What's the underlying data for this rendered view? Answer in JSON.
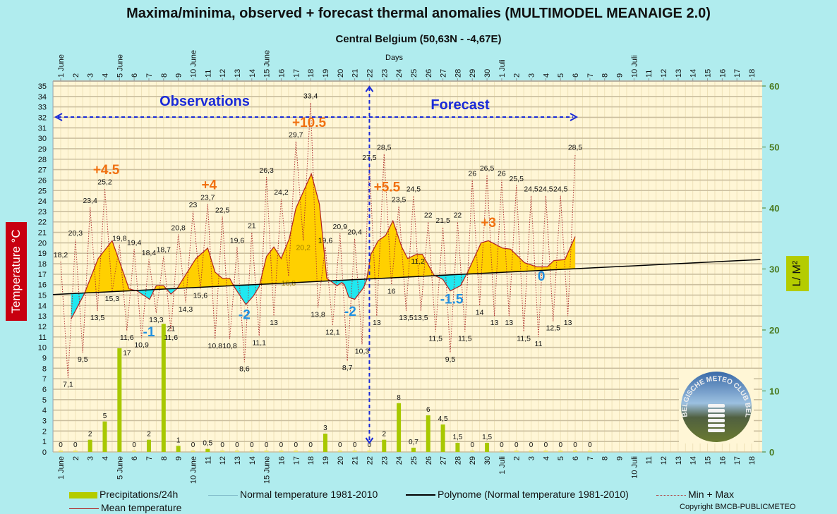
{
  "title": "Maxima/minima, observed + forecast thermal anomalies (MULTIMODEL MEANAIGE 2.0)",
  "subtitle": "Central Belgium (50,63N - -4,67E)",
  "chart_data": {
    "type": "combo",
    "xlabel": "Days",
    "ylabel_left": "Temperature °C",
    "ylabel_right": "L/ M²",
    "ylim_left": [
      0,
      35
    ],
    "ylim_right": [
      0,
      60
    ],
    "grid": true,
    "day_labels": [
      "1 June",
      "2",
      "3",
      "4",
      "5 June",
      "6",
      "7",
      "8",
      "9",
      "10 June",
      "11",
      "12",
      "13",
      "14",
      "15 June",
      "16",
      "17",
      "18",
      "19",
      "20",
      "21",
      "22",
      "23",
      "24",
      "25",
      "26",
      "27",
      "28",
      "29",
      "30",
      "1 Juli",
      "2",
      "3",
      "4",
      "5",
      "6",
      "7",
      "8",
      "9",
      "10 Juli",
      "11",
      "12",
      "13",
      "14",
      "15",
      "16",
      "17",
      "18"
    ],
    "regions": {
      "observations_label": "Observations",
      "forecast_label": "Forecast",
      "forecast_start_day": 22
    },
    "series": [
      {
        "name": "Precipitations/24h",
        "type": "bar",
        "axis": "right",
        "color": "#a8c800",
        "values": [
          0,
          0,
          2,
          5,
          17,
          0,
          2,
          21,
          1,
          0,
          0.5,
          0,
          0,
          0,
          0,
          0,
          0,
          0,
          3,
          0,
          0,
          0,
          2,
          8,
          0.7,
          6,
          4.5,
          1.5,
          0,
          1.5,
          0,
          0,
          0,
          0,
          0,
          0,
          0
        ]
      },
      {
        "name": "Normal temperature 1981-2010",
        "type": "line",
        "color": "#7fb8c8"
      },
      {
        "name": "Polynome (Normal temperature 1981-2010)",
        "type": "line",
        "color": "#000000",
        "points": [
          [
            0.47,
            15.05
          ],
          [
            48.6,
            18.4
          ]
        ]
      },
      {
        "name": "Min + Max",
        "type": "line",
        "style": "dotted",
        "color": "#b03030",
        "step_days": 0.5,
        "values": [
          18.2,
          7.1,
          20.3,
          9.5,
          23.4,
          13.5,
          25.2,
          15.3,
          19.8,
          11.6,
          19.4,
          10.9,
          18.4,
          13.3,
          18.7,
          11.6,
          20.8,
          14.3,
          23,
          15.6,
          23.7,
          10.8,
          22.5,
          10.8,
          19.6,
          8.6,
          21,
          11.1,
          26.3,
          13,
          24.2,
          16.8,
          29.7,
          20.2,
          33.4,
          13.8,
          19.6,
          12.1,
          20.9,
          8.7,
          20.4,
          10.3,
          27.5,
          13,
          28.5,
          16,
          23.5,
          13.5,
          24.5,
          13.5,
          22,
          11.5,
          21.5,
          9.5,
          22,
          11.5,
          26,
          14,
          26.5,
          13,
          26,
          13,
          25.5,
          11.5,
          24.5,
          11,
          24.5,
          12.5,
          24.5,
          13,
          28.5
        ]
      },
      {
        "name": "Mean temperature",
        "type": "line",
        "color": "#b02020",
        "points": [
          [
            1.7,
            12.7
          ],
          [
            2.6,
            15.1
          ],
          [
            3.55,
            18.5
          ],
          [
            4.5,
            20.2
          ],
          [
            5.65,
            15.6
          ],
          [
            6.2,
            15.4
          ],
          [
            7.05,
            14.6
          ],
          [
            7.5,
            15.9
          ],
          [
            8,
            15.9
          ],
          [
            8.5,
            15.1
          ],
          [
            8.9,
            15.6
          ],
          [
            10.2,
            18.5
          ],
          [
            11,
            19.5
          ],
          [
            11.5,
            17.2
          ],
          [
            12,
            16.6
          ],
          [
            12.5,
            16.6
          ],
          [
            12.8,
            15.8
          ],
          [
            13.6,
            14.1
          ],
          [
            14.1,
            14.9
          ],
          [
            14.5,
            15.8
          ],
          [
            15,
            18.7
          ],
          [
            15.5,
            19.6
          ],
          [
            16,
            18.5
          ],
          [
            16.55,
            20.4
          ],
          [
            17,
            23.3
          ],
          [
            18.05,
            26.6
          ],
          [
            18.6,
            23.7
          ],
          [
            19.1,
            16.6
          ],
          [
            19.4,
            16.3
          ],
          [
            19.8,
            15.9
          ],
          [
            20.1,
            16.2
          ],
          [
            20.3,
            16.0
          ],
          [
            20.6,
            14.8
          ],
          [
            21,
            14.6
          ],
          [
            21.6,
            15.7
          ],
          [
            21.8,
            16.4
          ],
          [
            22.1,
            18.9
          ],
          [
            22.6,
            20.2
          ],
          [
            23.1,
            20.7
          ],
          [
            23.6,
            22.1
          ],
          [
            24.2,
            19.6
          ],
          [
            24.6,
            18.5
          ],
          [
            25.2,
            18.9
          ],
          [
            25.6,
            18.9
          ],
          [
            26.4,
            16.9
          ],
          [
            27,
            16.5
          ],
          [
            27.5,
            15.4
          ],
          [
            28.2,
            15.9
          ],
          [
            28.65,
            17.1
          ],
          [
            29.6,
            20.0
          ],
          [
            30.1,
            20.2
          ],
          [
            31.05,
            19.5
          ],
          [
            31.6,
            19.4
          ],
          [
            32.55,
            18.1
          ],
          [
            33.4,
            17.7
          ],
          [
            34.1,
            17.7
          ],
          [
            34.55,
            18.3
          ],
          [
            35.3,
            18.4
          ],
          [
            36,
            20.6
          ]
        ]
      }
    ],
    "extra_labels": [
      {
        "text": "11,2",
        "day": 25.3,
        "temp": 18.0
      }
    ],
    "anomalies": [
      {
        "text": "+4.5",
        "day": 4.1,
        "temp": 26.3,
        "color": "#f07010"
      },
      {
        "text": "-1",
        "day": 7.0,
        "temp": 8.9,
        "color": "#2090e0"
      },
      {
        "text": "+4",
        "day": 11.1,
        "temp": 24.7,
        "color": "#f07010"
      },
      {
        "text": "-2",
        "day": 13.5,
        "temp": 12.7,
        "color": "#2090e0"
      },
      {
        "text": "+10.5",
        "day": 17.9,
        "temp": 30.0,
        "color": "#f07010"
      },
      {
        "text": "-2",
        "day": 20.7,
        "temp": 13.0,
        "color": "#2090e0"
      },
      {
        "text": "+5.5",
        "day": 23.2,
        "temp": 24.9,
        "color": "#f07010"
      },
      {
        "text": "-1.5",
        "day": 27.6,
        "temp": 14.2,
        "color": "#2090e0"
      },
      {
        "text": "+3",
        "day": 30.1,
        "temp": 21.5,
        "color": "#f07010"
      },
      {
        "text": "0",
        "day": 33.7,
        "temp": 16.4,
        "color": "#2090e0"
      }
    ]
  },
  "legend": {
    "precip": "Precipitations/24h",
    "normal": "Normal temperature 1981-2010",
    "poly": "Polynome (Normal temperature 1981-2010)",
    "minmax": "Min + Max",
    "mean": "Mean temperature"
  },
  "logo_text": "BELGISCHE METEO CLUB BELGE",
  "copyright": "Copyright BMCB-PUBLICMETEO",
  "colors": {
    "above_normal": "#ffd000",
    "below_normal": "#20e8f0",
    "plot_bg": "#fff6d6",
    "arrows": "#1a2ad8"
  }
}
